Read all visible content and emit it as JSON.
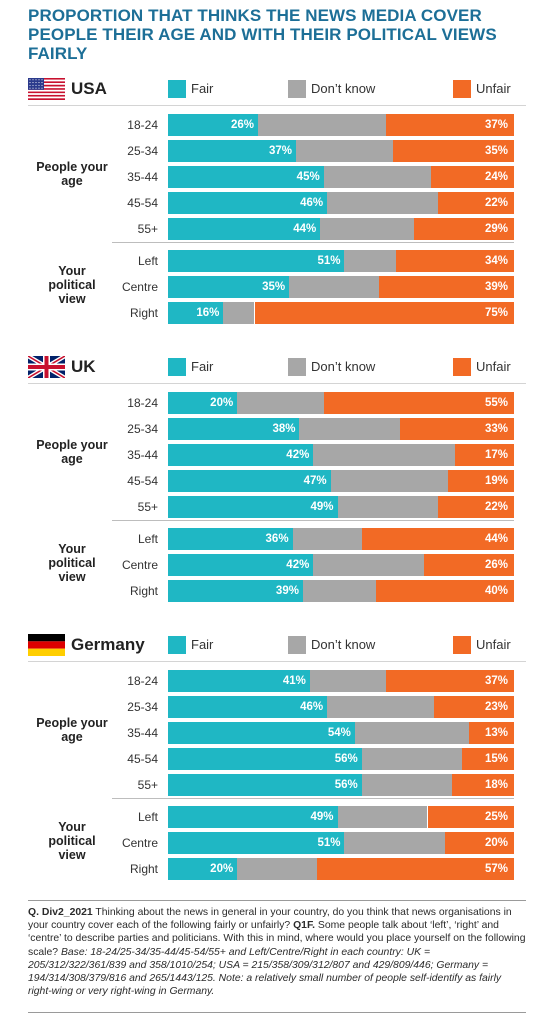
{
  "title": "PROPORTION THAT THINKS THE NEWS MEDIA COVER PEOPLE THEIR AGE AND WITH THEIR POLITICAL VIEWS FAIRLY",
  "legend": {
    "fair": "Fair",
    "dontknow": "Don’t know",
    "unfair": "Unfair"
  },
  "colors": {
    "fair": "#1fb7c4",
    "dontknow": "#a7a7a7",
    "unfair": "#f26a25",
    "title": "#1d6f97"
  },
  "group_labels": {
    "age": "People your age",
    "politics": "Your political view"
  },
  "chart_data": [
    {
      "type": "bar",
      "stacked": true,
      "orientation": "horizontal",
      "country": "USA",
      "flag_icon": "usa-flag-icon",
      "age": {
        "categories": [
          "18-24",
          "25-34",
          "35-44",
          "45-54",
          "55+"
        ],
        "fair": [
          26,
          37,
          45,
          46,
          44
        ],
        "unfair": [
          37,
          35,
          24,
          22,
          29
        ]
      },
      "politics": {
        "categories": [
          "Left",
          "Centre",
          "Right"
        ],
        "fair": [
          51,
          35,
          16
        ],
        "unfair": [
          34,
          39,
          75
        ]
      }
    },
    {
      "type": "bar",
      "stacked": true,
      "orientation": "horizontal",
      "country": "UK",
      "flag_icon": "uk-flag-icon",
      "age": {
        "categories": [
          "18-24",
          "25-34",
          "35-44",
          "45-54",
          "55+"
        ],
        "fair": [
          20,
          38,
          42,
          47,
          49
        ],
        "unfair": [
          55,
          33,
          17,
          19,
          22
        ]
      },
      "politics": {
        "categories": [
          "Left",
          "Centre",
          "Right"
        ],
        "fair": [
          36,
          42,
          39
        ],
        "unfair": [
          44,
          26,
          40
        ]
      }
    },
    {
      "type": "bar",
      "stacked": true,
      "orientation": "horizontal",
      "country": "Germany",
      "flag_icon": "germany-flag-icon",
      "age": {
        "categories": [
          "18-24",
          "25-34",
          "35-44",
          "45-54",
          "55+"
        ],
        "fair": [
          41,
          46,
          54,
          56,
          56
        ],
        "unfair": [
          37,
          23,
          13,
          15,
          18
        ]
      },
      "politics": {
        "categories": [
          "Left",
          "Centre",
          "Right"
        ],
        "fair": [
          49,
          51,
          20
        ],
        "unfair": [
          25,
          20,
          57
        ]
      }
    }
  ],
  "footnote": {
    "lead": "Q. Div2_2021",
    "question": " Thinking about the news in general in your country, do you think that news organisations in your country cover each of the following fairly or unfairly? ",
    "q1f_lead": "Q1F.",
    "q1f": " Some people talk about ‘left’, ‘right’ and ‘centre’ to describe parties and politicians. With this in mind, where would you place yourself on the following scale? ",
    "base": "Base: 18-24/25-34/35-44/45-54/55+ and Left/Centre/Right in each country: UK = 205/312/322/361/839 and 358/1010/254; USA = 215/358/309/312/807 and 429/809/446; Germany = 194/314/308/379/816 and 265/1443/125. Note: a relatively small number of people self-identify as fairly right-wing or very right-wing in Germany."
  }
}
